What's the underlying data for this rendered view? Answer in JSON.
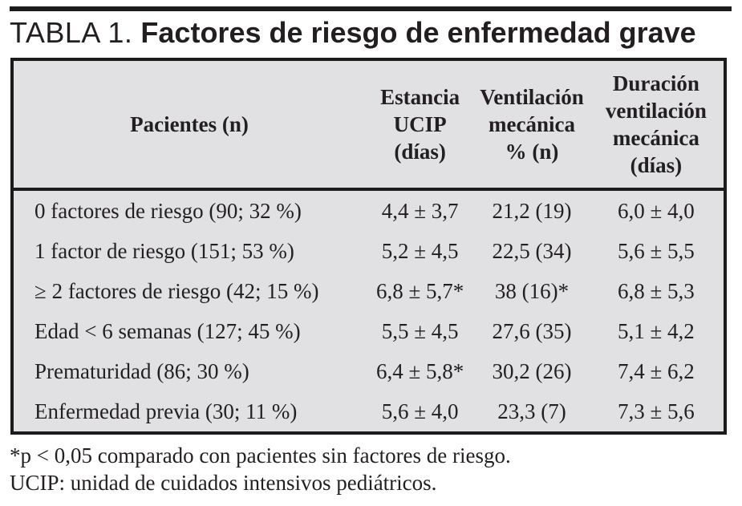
{
  "title": {
    "prefix": "TABLA 1.",
    "text": "Factores de riesgo de enfermedad grave"
  },
  "colors": {
    "table_background": "#e1e1e3",
    "border": "#1b1b1b",
    "text": "#231f20",
    "page_background": "#ffffff"
  },
  "table": {
    "headers": {
      "pacientes": "Pacientes (n)",
      "estancia": "Estancia\nUCIP\n(días)",
      "ventilacion": "Ventilación\nmecánica\n% (n)",
      "duracion": "Duración\nventilación\nmecánica\n(días)"
    },
    "rows": [
      {
        "label": "0 factores de riesgo (90; 32 %)",
        "estancia": "4,4 ± 3,7",
        "ventilacion": "21,2 (19)",
        "duracion": "6,0 ± 4,0"
      },
      {
        "label": "1 factor de riesgo (151; 53 %)",
        "estancia": "5,2 ± 4,5",
        "ventilacion": "22,5 (34)",
        "duracion": "5,6 ± 5,5"
      },
      {
        "label": "≥ 2 factores de riesgo (42; 15 %)",
        "estancia": "6,8 ± 5,7*",
        "ventilacion": "38 (16)*",
        "duracion": "6,8 ± 5,3"
      },
      {
        "label": "Edad < 6 semanas (127; 45 %)",
        "estancia": "5,5 ± 4,5",
        "ventilacion": "27,6 (35)",
        "duracion": "5,1 ± 4,2"
      },
      {
        "label": "Prematuridad (86; 30 %)",
        "estancia": "6,4 ± 5,8*",
        "ventilacion": "30,2 (26)",
        "duracion": "7,4 ± 6,2"
      },
      {
        "label": "Enfermedad previa (30; 11 %)",
        "estancia": "5,6 ± 4,0",
        "ventilacion": "23,3 (7)",
        "duracion": "7,3 ± 5,6"
      }
    ]
  },
  "footnotes": [
    "*p < 0,05 comparado con pacientes sin factores de riesgo.",
    "UCIP: unidad de cuidados intensivos pediátricos."
  ]
}
